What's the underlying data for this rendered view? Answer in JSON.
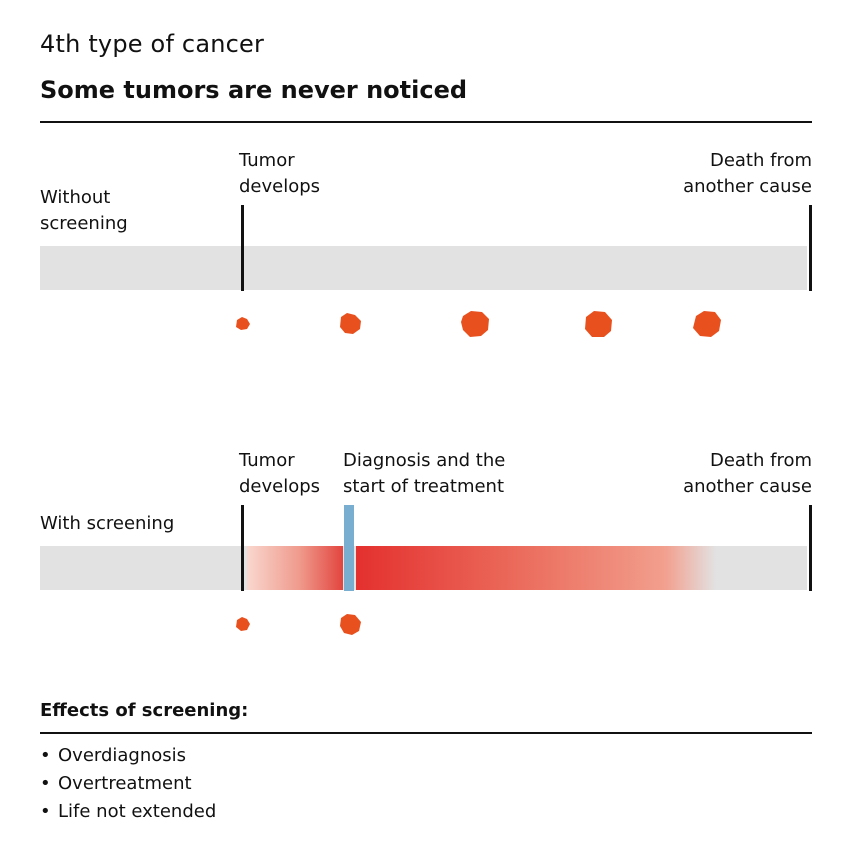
{
  "header": {
    "kicker": "4th type of cancer",
    "title": "Some tumors are never noticed"
  },
  "scenarios": [
    {
      "row_label": "Without screening",
      "marker_start": "Tumor develops",
      "marker_end": "Death from another cause",
      "tumor_count": 5
    },
    {
      "row_label": "With screening",
      "marker_start": "Tumor develops",
      "marker_middle": "Diagnosis and the start of treatment",
      "marker_end": "Death from another cause",
      "tumor_count": 2
    }
  ],
  "effects": {
    "title": "Effects of screening:",
    "bullet": "•",
    "items": [
      "Overdiagnosis",
      "Overtreatment",
      "Life not extended"
    ]
  },
  "colors": {
    "tumor": "#e8501e",
    "track": "#e2e2e2",
    "diagnosis_marker": "#7aaed0",
    "treatment_start": "#e4302f",
    "text": "#111111"
  }
}
